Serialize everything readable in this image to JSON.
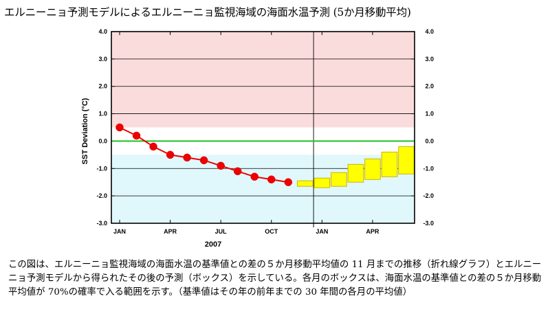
{
  "page": {
    "title": "エルニーニョ予測モデルによるエルニーニョ監視海域の海面水温予測 (5か月移動平均)",
    "caption": "この図は、エルニーニョ監視海域の海面水温の基準値との差の５か月移動平均値の 11 月までの推移（折れ線グラフ）とエルニーニョ予測モデルから得られたその後の予測（ボックス）を示している。各月のボックスは、海面水温の基準値との差の５か月移動平均値が 70%の確率で入る範囲を示す。（基準値はその年の前年までの 30 年間の各月の平均値）"
  },
  "chart_data": {
    "type": "line",
    "title": "",
    "ylabel": "SST Deviation (°C)",
    "xlabel": "2007",
    "ylim": [
      -3.0,
      4.0
    ],
    "y_ticks": [
      "4.0",
      "3.0",
      "2.0",
      "1.0",
      "0.0",
      "-1.0",
      "-2.0",
      "-3.0"
    ],
    "y_tick_values": [
      4,
      3,
      2,
      1,
      0,
      -1,
      -2,
      -3
    ],
    "x_month_range": [
      1,
      18
    ],
    "x_tick_labels": [
      {
        "label": "JAN",
        "month": 1
      },
      {
        "label": "APR",
        "month": 4
      },
      {
        "label": "JUL",
        "month": 7
      },
      {
        "label": "OCT",
        "month": 10
      },
      {
        "label": "JAN",
        "month": 13
      },
      {
        "label": "APR",
        "month": 16
      }
    ],
    "year_divider_month": 12.5,
    "bands": [
      {
        "name": "el-nino-zone",
        "from": 0.5,
        "to": 4.0,
        "color": "#fbdcdc"
      },
      {
        "name": "la-nina-zone",
        "from": -3.0,
        "to": -0.5,
        "color": "#e0f8fb"
      }
    ],
    "zero_line_color": "#20c020",
    "series": [
      {
        "name": "observed 5-month running mean",
        "color": "#ee0000",
        "months": [
          1,
          2,
          3,
          4,
          5,
          6,
          7,
          8,
          9,
          10,
          11
        ],
        "values": [
          0.5,
          0.2,
          -0.2,
          -0.5,
          -0.6,
          -0.7,
          -0.9,
          -1.1,
          -1.3,
          -1.4,
          -1.5
        ]
      }
    ],
    "forecast_boxes": {
      "color": "#ffff00",
      "edge_color": "#c8b400",
      "boxes": [
        {
          "month": 12,
          "low": -1.65,
          "high": -1.45
        },
        {
          "month": 13,
          "low": -1.7,
          "high": -1.35
        },
        {
          "month": 14,
          "low": -1.65,
          "high": -1.15
        },
        {
          "month": 15,
          "low": -1.5,
          "high": -0.85
        },
        {
          "month": 16,
          "low": -1.4,
          "high": -0.65
        },
        {
          "month": 17,
          "low": -1.3,
          "high": -0.4
        },
        {
          "month": 18,
          "low": -1.2,
          "high": -0.2
        }
      ]
    }
  }
}
